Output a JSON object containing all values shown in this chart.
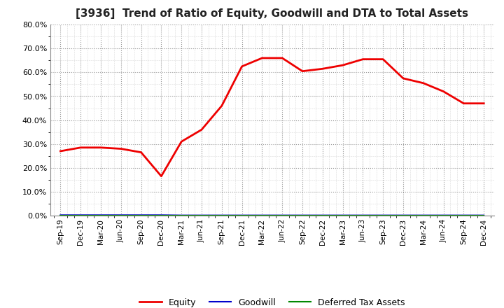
{
  "title": "[3936]  Trend of Ratio of Equity, Goodwill and DTA to Total Assets",
  "x_labels": [
    "Sep-19",
    "Dec-19",
    "Mar-20",
    "Jun-20",
    "Sep-20",
    "Dec-20",
    "Mar-21",
    "Jun-21",
    "Sep-21",
    "Dec-21",
    "Mar-22",
    "Jun-22",
    "Sep-22",
    "Dec-22",
    "Mar-23",
    "Jun-23",
    "Sep-23",
    "Dec-23",
    "Mar-24",
    "Jun-24",
    "Sep-24",
    "Dec-24"
  ],
  "equity": [
    0.27,
    0.285,
    0.285,
    0.28,
    0.265,
    0.165,
    0.31,
    0.36,
    0.46,
    0.625,
    0.66,
    0.66,
    0.605,
    0.615,
    0.63,
    0.655,
    0.655,
    0.575,
    0.555,
    0.52,
    0.47,
    0.47
  ],
  "goodwill": [
    0.002,
    0.002,
    0.002,
    0.002,
    0.002,
    0.002,
    0.001,
    0.001,
    0.001,
    0.001,
    0.001,
    0.001,
    0.001,
    0.001,
    0.001,
    0.001,
    0.001,
    0.001,
    0.001,
    0.001,
    0.001,
    0.001
  ],
  "dta": [
    0.0,
    0.0,
    0.0,
    0.0,
    0.0,
    0.0,
    0.0,
    0.0,
    0.0,
    0.0,
    0.0,
    0.0,
    0.0,
    0.0,
    0.0,
    0.0,
    0.0,
    0.0,
    0.0,
    0.0,
    0.0,
    0.0
  ],
  "equity_color": "#ee0000",
  "goodwill_color": "#0000cc",
  "dta_color": "#008800",
  "background_color": "#ffffff",
  "plot_bg_color": "#ffffff",
  "grid_color": "#aaaaaa",
  "ylim": [
    0.0,
    0.8
  ],
  "yticks": [
    0.0,
    0.1,
    0.2,
    0.3,
    0.4,
    0.5,
    0.6,
    0.7,
    0.8
  ],
  "title_fontsize": 11,
  "legend_labels": [
    "Equity",
    "Goodwill",
    "Deferred Tax Assets"
  ]
}
